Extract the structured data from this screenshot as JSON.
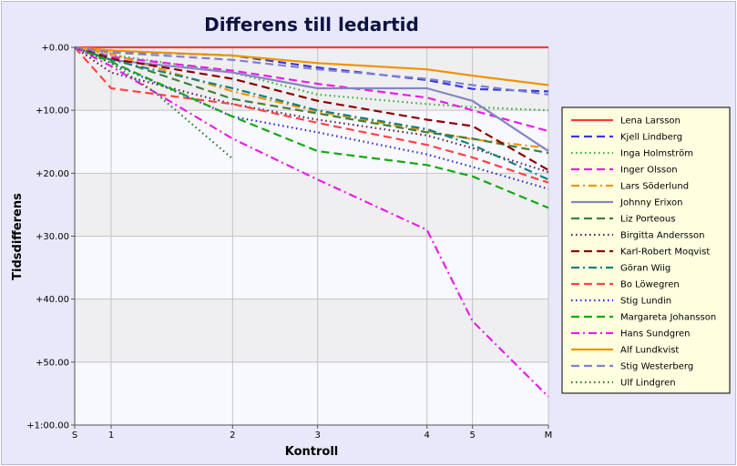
{
  "chart_data": {
    "type": "line",
    "title": "Differens till ledartid",
    "xlabel": "Kontroll",
    "ylabel": "Tidsdifferens",
    "categories": [
      "S",
      "1",
      "2",
      "3",
      "4",
      "5",
      "M"
    ],
    "x_values": [
      0,
      0.6,
      2.6,
      4,
      5.8,
      6.55,
      7.8
    ],
    "y_tick_labels": [
      "+0.00",
      "+10.00",
      "+20.00",
      "+30.00",
      "+40.00",
      "+50.00",
      "+1:00.00"
    ],
    "ylim": [
      0,
      60
    ],
    "y_inverted": true,
    "grid": true,
    "legend_position": "right",
    "series": [
      {
        "name": "Lena Larsson",
        "color": "#ff3b3b",
        "dash": "solid",
        "x": [
          0,
          0.6,
          2.6,
          4,
          5.8,
          6.55,
          7.8
        ],
        "values": [
          0,
          0,
          0,
          0,
          0,
          0,
          0
        ]
      },
      {
        "name": "Kjell Lindberg",
        "color": "#3a3ae0",
        "dash": "dash",
        "x": [
          0,
          0.6,
          2.6,
          4,
          5.8,
          6.55,
          7.8
        ],
        "values": [
          0,
          0.6,
          1.3,
          3.2,
          5.2,
          6.6,
          7.0
        ]
      },
      {
        "name": "Inga Holmström",
        "color": "#33b033",
        "dash": "dot",
        "x": [
          0,
          0.6,
          2.6,
          4,
          5.8,
          6.55,
          7.8
        ],
        "values": [
          0,
          1.2,
          4.0,
          7.5,
          9.0,
          9.5,
          10.0
        ]
      },
      {
        "name": "Inger Olsson",
        "color": "#e81ee8",
        "dash": "dash",
        "x": [
          0,
          0.6,
          2.6,
          4,
          5.8,
          6.55,
          7.8
        ],
        "values": [
          0,
          1.5,
          3.7,
          5.8,
          8.0,
          10.0,
          13.3
        ]
      },
      {
        "name": "Lars Söderlund",
        "color": "#f09400",
        "dash": "dashdot",
        "x": [
          0,
          0.6,
          2.6,
          4,
          5.8,
          6.55,
          7.8
        ],
        "values": [
          0,
          1.0,
          7.0,
          10.2,
          13.3,
          14.6,
          16.0
        ]
      },
      {
        "name": "Johnny Erixon",
        "color": "#8585c2",
        "dash": "solid",
        "x": [
          0,
          0.6,
          2.6,
          4,
          5.8,
          6.55,
          7.8
        ],
        "values": [
          0,
          2.0,
          4.0,
          6.5,
          6.5,
          8.5,
          16.5
        ]
      },
      {
        "name": "Liz Porteous",
        "color": "#3f7f3f",
        "dash": "dash",
        "x": [
          0,
          0.6,
          2.6,
          4,
          5.8,
          6.55,
          7.8
        ],
        "values": [
          0,
          1.7,
          8.2,
          10.5,
          13.5,
          14.5,
          16.8
        ]
      },
      {
        "name": "Birgitta Andersson",
        "color": "#5a1a5a",
        "dash": "dot",
        "x": [
          0,
          0.6,
          2.6,
          4,
          5.8,
          6.55,
          7.8
        ],
        "values": [
          0,
          4.0,
          9.0,
          11.5,
          14.0,
          16.0,
          19.8
        ]
      },
      {
        "name": "Karl-Robert Moqvist",
        "color": "#8b0000",
        "dash": "dash",
        "x": [
          0,
          0.6,
          2.6,
          4,
          5.8,
          6.55,
          7.8
        ],
        "values": [
          0,
          1.8,
          5.0,
          8.5,
          11.5,
          12.5,
          19.5
        ]
      },
      {
        "name": "Göran Wiig",
        "color": "#138080",
        "dash": "dashdot",
        "x": [
          0,
          0.6,
          2.6,
          4,
          5.8,
          6.55,
          7.8
        ],
        "values": [
          0,
          2.0,
          6.5,
          10.0,
          13.0,
          15.5,
          21.0
        ]
      },
      {
        "name": "Bo Löwegren",
        "color": "#ff4444",
        "dash": "dash",
        "x": [
          0,
          0.6,
          2.6,
          4,
          5.8,
          6.55,
          7.8
        ],
        "values": [
          0,
          6.5,
          9.0,
          12.0,
          15.5,
          17.5,
          21.5
        ]
      },
      {
        "name": "Stig Lundin",
        "color": "#2828d8",
        "dash": "dot",
        "x": [
          0,
          0.6,
          2.6,
          4,
          5.8,
          6.55,
          7.8
        ],
        "values": [
          0,
          2.5,
          11.0,
          13.5,
          17.0,
          19.0,
          22.5
        ]
      },
      {
        "name": "Margareta Johansson",
        "color": "#11aa11",
        "dash": "dash",
        "x": [
          0,
          0.6,
          2.6,
          4,
          5.8,
          6.55,
          7.8
        ],
        "values": [
          0,
          2.3,
          11.0,
          16.5,
          18.7,
          20.5,
          25.5
        ]
      },
      {
        "name": "Hans Sundgren",
        "color": "#e81ee8",
        "dash": "dashdot",
        "x": [
          0,
          0.6,
          2.6,
          4,
          5.8,
          6.55,
          7.8
        ],
        "values": [
          0,
          3.0,
          14.5,
          21.0,
          29.0,
          43.5,
          55.5
        ]
      },
      {
        "name": "Alf Lundkvist",
        "color": "#f09400",
        "dash": "solid",
        "x": [
          0,
          0.6,
          2.6,
          4,
          5.8,
          6.55,
          7.8
        ],
        "values": [
          0,
          0.5,
          1.3,
          2.5,
          3.5,
          4.5,
          6.0
        ]
      },
      {
        "name": "Stig Westerberg",
        "color": "#8080d0",
        "dash": "dash",
        "x": [
          0,
          0.6,
          2.6,
          4,
          5.8,
          6.55,
          7.8
        ],
        "values": [
          0,
          0.8,
          2.0,
          3.5,
          5.0,
          6.0,
          7.5
        ]
      },
      {
        "name": "Ulf Lindgren",
        "color": "#2c7a2c",
        "dash": "dot",
        "x": [
          0,
          0.6,
          1.3,
          2.6
        ],
        "values": [
          0,
          2.5,
          7.0,
          17.7
        ]
      }
    ]
  }
}
